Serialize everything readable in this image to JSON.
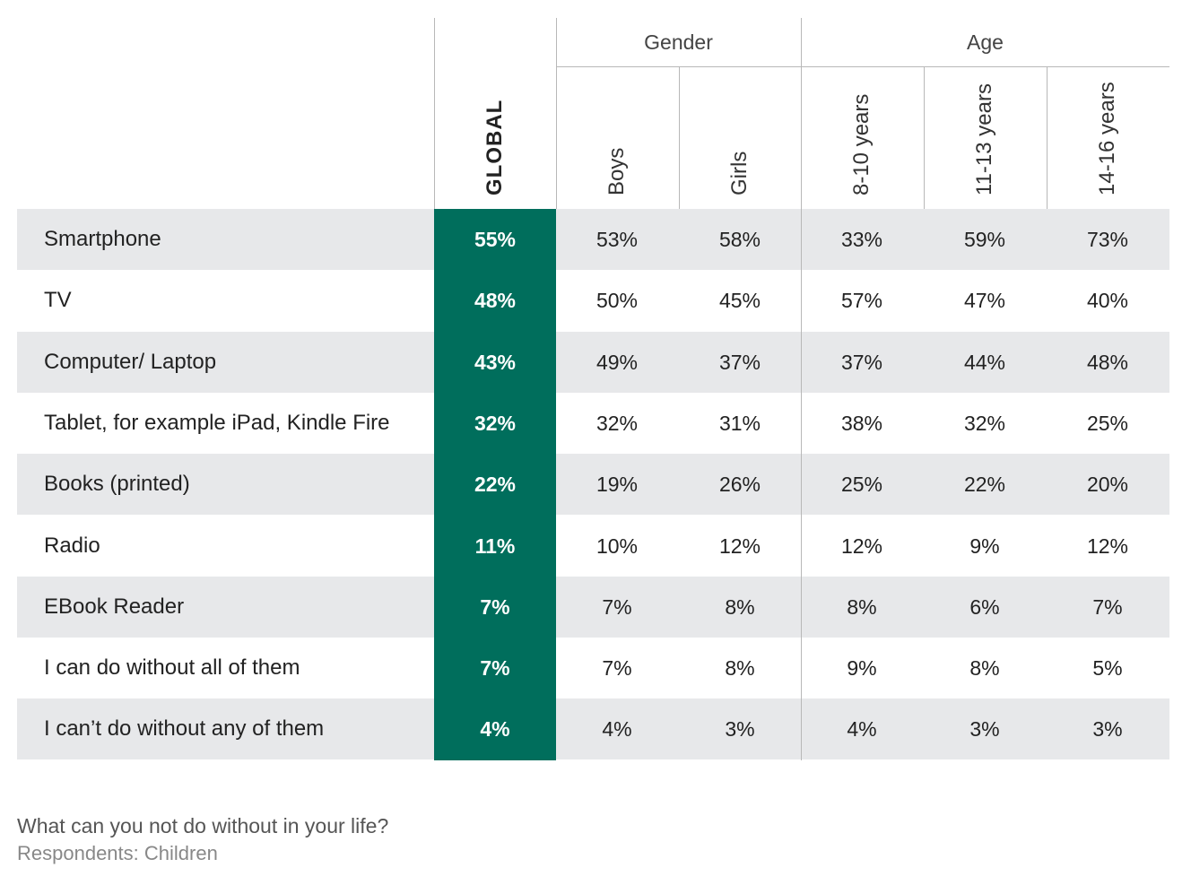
{
  "chart_data": {
    "type": "table",
    "groups": [
      {
        "label": "Gender",
        "columns": [
          "Boys",
          "Girls"
        ]
      },
      {
        "label": "Age",
        "columns": [
          "8-10 years",
          "11-13 years",
          "14-16 years"
        ]
      }
    ],
    "columns": [
      "GLOBAL",
      "Boys",
      "Girls",
      "8-10 years",
      "11-13 years",
      "14-16 years"
    ],
    "rows": [
      {
        "label": "Smartphone",
        "values": [
          "55%",
          "53%",
          "58%",
          "33%",
          "59%",
          "73%"
        ]
      },
      {
        "label": "TV",
        "values": [
          "48%",
          "50%",
          "45%",
          "57%",
          "47%",
          "40%"
        ]
      },
      {
        "label": "Computer/ Laptop",
        "values": [
          "43%",
          "49%",
          "37%",
          "37%",
          "44%",
          "48%"
        ]
      },
      {
        "label": "Tablet, for example iPad, Kindle Fire",
        "values": [
          "32%",
          "32%",
          "31%",
          "38%",
          "32%",
          "25%"
        ]
      },
      {
        "label": "Books (printed)",
        "values": [
          "22%",
          "19%",
          "26%",
          "25%",
          "22%",
          "20%"
        ]
      },
      {
        "label": "Radio",
        "values": [
          "11%",
          "10%",
          "12%",
          "12%",
          "9%",
          "12%"
        ]
      },
      {
        "label": "EBook Reader",
        "values": [
          "7%",
          "7%",
          "8%",
          "8%",
          "6%",
          "7%"
        ]
      },
      {
        "label": "I can do without all of them",
        "values": [
          "7%",
          "7%",
          "8%",
          "9%",
          "8%",
          "5%"
        ]
      },
      {
        "label": "I can’t do without any of them",
        "values": [
          "4%",
          "4%",
          "3%",
          "4%",
          "3%",
          "3%"
        ]
      }
    ],
    "colors": {
      "global_fill": "#006e5c",
      "row_shade": "#e7e8ea",
      "global_text": "#ffffff"
    }
  },
  "footer": {
    "question": "What can you not do without in your life?",
    "respondents": "Respondents: Children"
  }
}
